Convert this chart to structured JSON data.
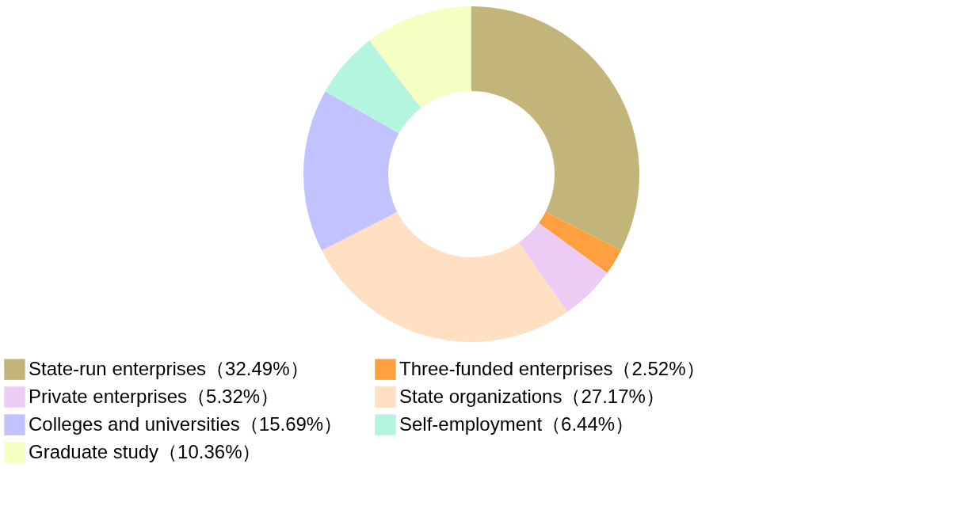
{
  "chart_data": {
    "type": "donut",
    "categories": [
      "State-run enterprises（32.49%）",
      "Three-funded enterprises（2.52%）",
      "Private enterprises（5.32%）",
      "State organizations（27.17%）",
      "Colleges and universities（15.69%）",
      "Self-employment（6.44%）",
      "Graduate study（10.36%）"
    ],
    "values": [
      32.49,
      2.52,
      5.32,
      27.17,
      15.69,
      6.44,
      10.36
    ],
    "colors": [
      "#c2b57a",
      "#ffa040",
      "#eccbf5",
      "#ffe0c2",
      "#c2c2ff",
      "#b5f5e0",
      "#f5ffc2"
    ],
    "legend": "bottom"
  }
}
